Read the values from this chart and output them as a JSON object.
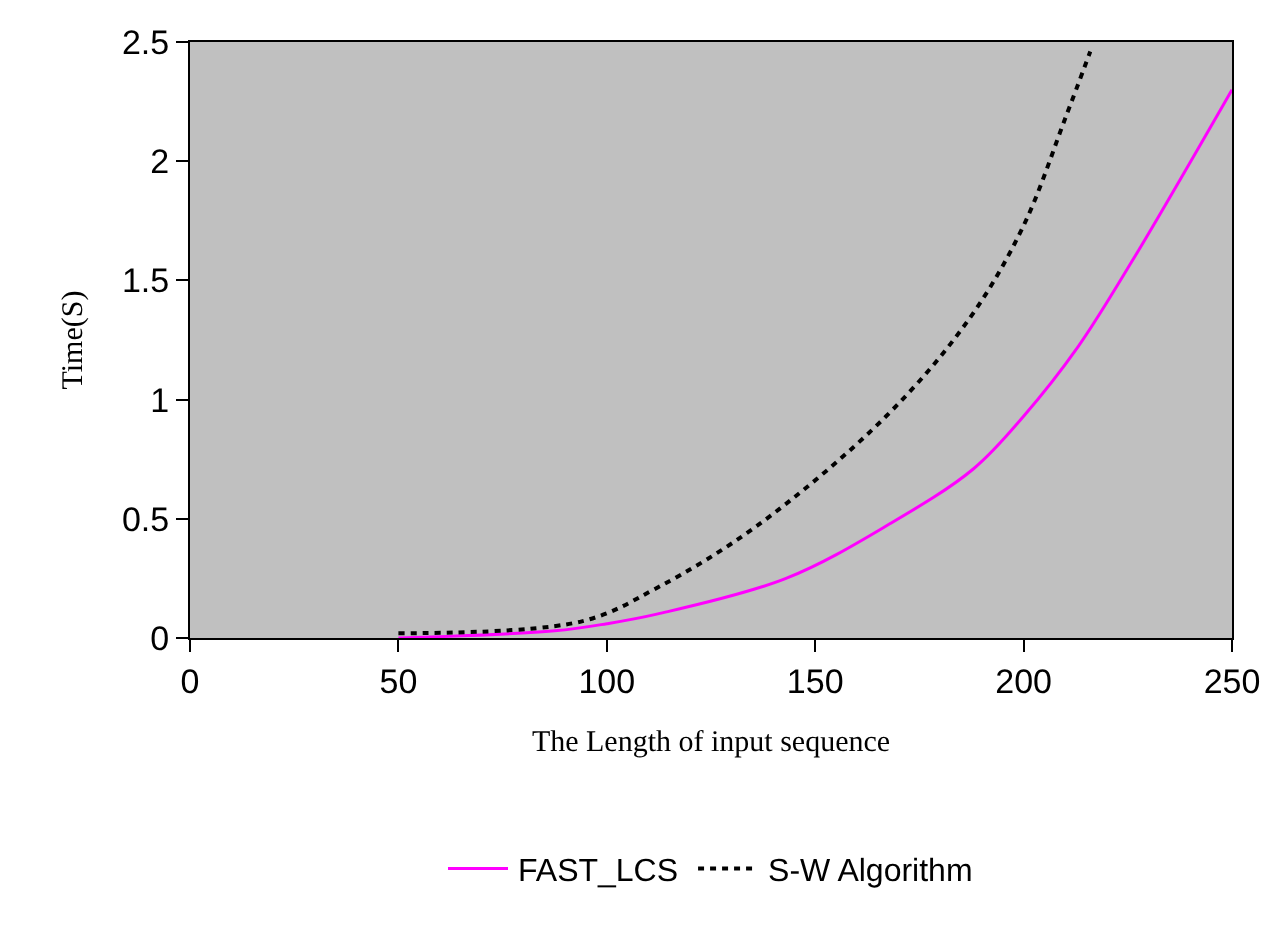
{
  "chart_data": {
    "type": "line",
    "xlabel": "The Length of input sequence",
    "ylabel": "Time(S)",
    "xlim": [
      0,
      250
    ],
    "xticks": [
      0,
      50,
      100,
      150,
      200,
      250
    ],
    "ylim": [
      0,
      2.5
    ],
    "yticks": [
      0,
      0.5,
      1,
      1.5,
      2,
      2.5
    ],
    "grid": false,
    "legend": "bottom",
    "marker": "none",
    "series": [
      {
        "name": "FAST_LCS",
        "color": "#ff00ff",
        "line_style": "solid",
        "x": [
          50,
          87.5,
          100,
          112,
          143,
          168,
          188,
          200,
          213,
          226,
          250
        ],
        "values": [
          0,
          0.03,
          0.06,
          0.1,
          0.25,
          0.48,
          0.71,
          0.93,
          1.22,
          1.58,
          2.3
        ]
      },
      {
        "name": "S-W Algorithm",
        "color": "#000000",
        "line_style": "dotted",
        "x": [
          50,
          94,
          112,
          136,
          167,
          187,
          200,
          210,
          216
        ],
        "values": [
          0.02,
          0.07,
          0.21,
          0.47,
          0.93,
          1.34,
          1.73,
          2.18,
          2.46
        ]
      }
    ]
  }
}
